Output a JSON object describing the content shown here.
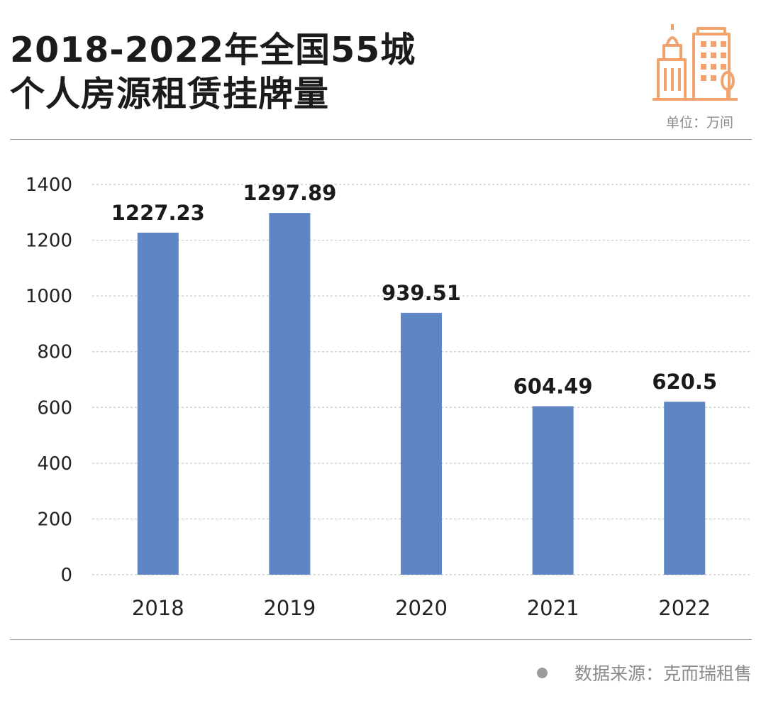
{
  "header": {
    "title_line1": "2018-2022年全国55城",
    "title_line2": "个人房源租赁挂牌量",
    "unit": "单位：万间"
  },
  "footer": {
    "source": "数据来源：克而瑞租售"
  },
  "colors": {
    "bar": "#5f86c2",
    "logo": "#f0a36c",
    "grid": "#c8c8c8",
    "axis_text": "#222222",
    "label_text": "#1a1a1a"
  },
  "chart_data": {
    "type": "bar",
    "title": "2018-2022年全国55城个人房源租赁挂牌量",
    "categories": [
      "2018",
      "2019",
      "2020",
      "2021",
      "2022"
    ],
    "values": [
      1227.23,
      1297.89,
      939.51,
      604.49,
      620.5
    ],
    "data_labels": [
      "1227.23",
      "1297.89",
      "939.51",
      "604.49",
      "620.5"
    ],
    "ylim": [
      0,
      1400
    ],
    "yticks": [
      0,
      200,
      400,
      600,
      800,
      1000,
      1200,
      1400
    ],
    "grid": true,
    "legend": "none",
    "xlabel": "",
    "ylabel": ""
  }
}
